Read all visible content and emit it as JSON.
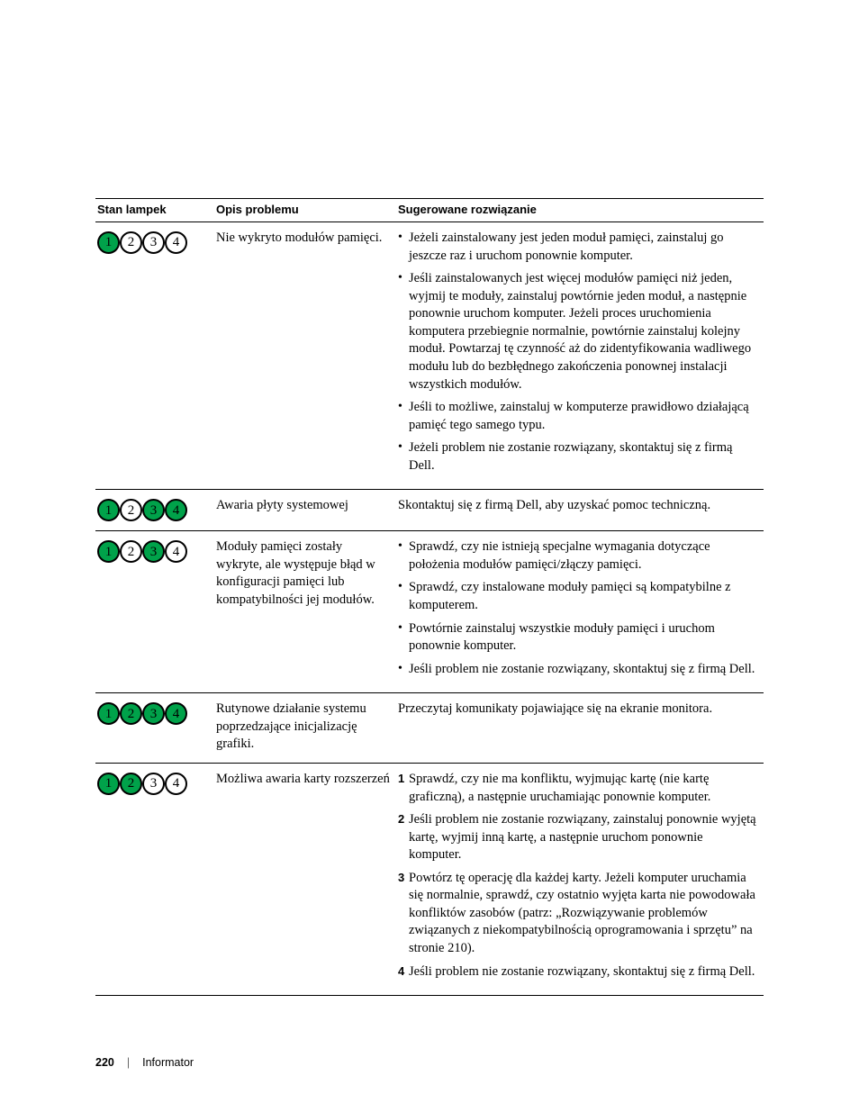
{
  "colors": {
    "lamp_on_bg": "#00a24a",
    "lamp_border": "#000000",
    "lamp_off_bg": "#ffffff",
    "text": "#000000",
    "rule": "#000000"
  },
  "typography": {
    "header_font": "Arial",
    "header_weight": 700,
    "header_size_pt": 10,
    "body_font": "Georgia",
    "body_size_pt": 11
  },
  "lamp_numbers": [
    "1",
    "2",
    "3",
    "4"
  ],
  "headers": {
    "lamps": "Stan lampek",
    "desc": "Opis problemu",
    "sol": "Sugerowane rozwiązanie"
  },
  "rows": [
    {
      "pattern": [
        true,
        false,
        false,
        false
      ],
      "desc": "Nie wykryto modułów pamięci.",
      "sol_type": "bullets",
      "sol": [
        "Jeżeli zainstalowany jest jeden moduł pamięci, zainstaluj go jeszcze raz i uruchom ponownie komputer.",
        "Jeśli zainstalowanych jest więcej modułów pamięci niż jeden, wyjmij te moduły, zainstaluj powtórnie jeden moduł, a następnie ponownie uruchom komputer. Jeżeli proces uruchomienia komputera przebiegnie normalnie, powtórnie zainstaluj kolejny moduł. Powtarzaj tę czynność aż do zidentyfikowania wadliwego modułu lub do bezbłędnego zakończenia ponownej instalacji wszystkich modułów.",
        "Jeśli to możliwe, zainstaluj w komputerze prawidłowo działającą pamięć tego samego typu.",
        "Jeżeli problem nie zostanie rozwiązany, skontaktuj się z firmą Dell."
      ]
    },
    {
      "pattern": [
        true,
        false,
        true,
        true
      ],
      "desc": "Awaria płyty systemowej",
      "sol_type": "plain",
      "sol_plain": "Skontaktuj się z firmą Dell, aby uzyskać pomoc techniczną."
    },
    {
      "pattern": [
        true,
        false,
        true,
        false
      ],
      "desc": "Moduły pamięci zostały wykryte, ale występuje błąd w konfiguracji pamięci lub kompatybilności jej modułów.",
      "sol_type": "bullets",
      "sol": [
        "Sprawdź, czy nie istnieją specjalne wymagania dotyczące położenia modułów pamięci/złączy pamięci.",
        "Sprawdź, czy instalowane moduły pamięci są kompatybilne z komputerem.",
        "Powtórnie zainstaluj wszystkie moduły pamięci i uruchom ponownie komputer.",
        "Jeśli problem nie zostanie rozwiązany, skontaktuj się z firmą Dell."
      ]
    },
    {
      "pattern": [
        true,
        true,
        true,
        true
      ],
      "desc": "Rutynowe działanie systemu poprzedzające inicjalizację grafiki.",
      "sol_type": "plain",
      "sol_plain": "Przeczytaj komunikaty pojawiające się na ekranie monitora."
    },
    {
      "pattern": [
        true,
        true,
        false,
        false
      ],
      "desc": "Możliwa awaria karty rozszerzeń",
      "sol_type": "steps",
      "sol": [
        "Sprawdź, czy nie ma konfliktu, wyjmując kartę (nie kartę graficzną), a następnie uruchamiając ponownie komputer.",
        "Jeśli problem nie zostanie rozwiązany, zainstaluj ponownie wyjętą kartę, wyjmij inną kartę, a następnie uruchom ponownie komputer.",
        "Powtórz tę operację dla każdej karty. Jeżeli komputer uruchamia się normalnie, sprawdź, czy ostatnio wyjęta karta nie powodowała konfliktów zasobów (patrz: „Rozwiązywanie problemów związanych z niekompatybilnością oprogramowania i sprzętu” na stronie 210).",
        "Jeśli problem nie zostanie rozwiązany, skontaktuj się z firmą Dell."
      ]
    }
  ],
  "footer": {
    "page": "220",
    "sep": "|",
    "section": "Informator"
  }
}
